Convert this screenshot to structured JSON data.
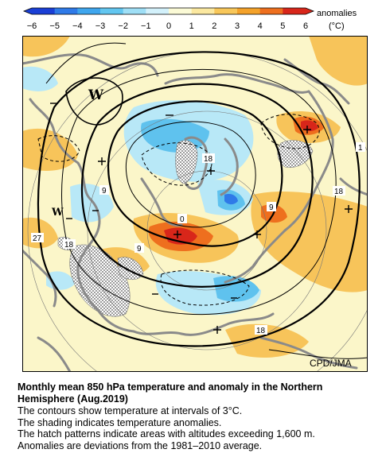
{
  "legend": {
    "ticks": [
      "−6",
      "−5",
      "−4",
      "−3",
      "−2",
      "−1",
      "0",
      "1",
      "2",
      "3",
      "4",
      "5",
      "6"
    ],
    "title": "anomalies",
    "unit": "(°C)",
    "colors": [
      "#1a3fd6",
      "#2f7ae8",
      "#3fa6ee",
      "#62c6f0",
      "#9fdff6",
      "#d3f1fb",
      "#fbfad6",
      "#fbe8a0",
      "#f8c75a",
      "#f4a22a",
      "#ee6f1e",
      "#d8261a"
    ]
  },
  "map": {
    "credit": "CPD/JMA",
    "contour_labels": [
      "0",
      "9",
      "18",
      "9",
      "18",
      "27",
      "18",
      "9",
      "18",
      "1"
    ],
    "high_low_marks": [
      "W",
      "W"
    ],
    "colors": {
      "background": "#fbf6c9",
      "warm": "#f7c45a",
      "hot": "#ee6f1e",
      "very_hot": "#d8261a",
      "cool": "#b8e8f7",
      "cold": "#5fc2ee",
      "very_cold": "#2f7ae8",
      "coast": "#8a8a8a",
      "hatch": "#7d7d7d"
    }
  },
  "caption": {
    "title_line1": "Monthly mean 850 hPa temperature and anomaly in the Northern",
    "title_line2": "Hemisphere (Aug.2019)",
    "line1": "The contours show temperature at intervals of 3°C.",
    "line2": "The shading indicates temperature anomalies.",
    "line3": "The hatch patterns indicate areas with altitudes exceeding 1,600 m.",
    "line4": "Anomalies are deviations from the 1981–2010 average."
  }
}
